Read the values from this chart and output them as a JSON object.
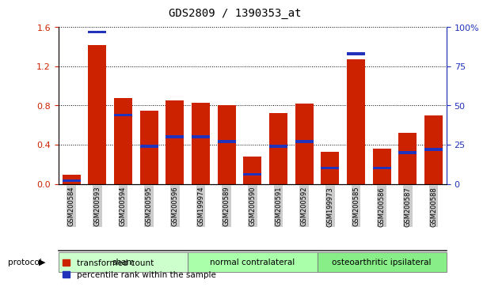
{
  "title": "GDS2809 / 1390353_at",
  "categories": [
    "GSM200584",
    "GSM200593",
    "GSM200594",
    "GSM200595",
    "GSM200596",
    "GSM199974",
    "GSM200589",
    "GSM200590",
    "GSM200591",
    "GSM200592",
    "GSM199973",
    "GSM200585",
    "GSM200586",
    "GSM200587",
    "GSM200588"
  ],
  "red_values": [
    0.09,
    1.42,
    0.88,
    0.75,
    0.85,
    0.83,
    0.8,
    0.28,
    0.72,
    0.82,
    0.33,
    1.27,
    0.36,
    0.52,
    0.7
  ],
  "blue_pct": [
    2,
    97,
    44,
    24,
    30,
    30,
    27,
    6,
    24,
    27,
    10,
    83,
    10,
    20,
    22
  ],
  "ylim_left": [
    0,
    1.6
  ],
  "ylim_right": [
    0,
    100
  ],
  "yticks_left": [
    0.0,
    0.4,
    0.8,
    1.2,
    1.6
  ],
  "yticks_right": [
    0,
    25,
    50,
    75,
    100
  ],
  "ytick_labels_right": [
    "0",
    "25",
    "50",
    "75",
    "100%"
  ],
  "red_color": "#CC2200",
  "blue_color": "#2233BB",
  "bar_width": 0.7,
  "groups": [
    {
      "label": "sham",
      "start": 0,
      "end": 5,
      "color": "#ccffcc"
    },
    {
      "label": "normal contralateral",
      "start": 5,
      "end": 10,
      "color": "#aaffaa"
    },
    {
      "label": "osteoarthritic ipsilateral",
      "start": 10,
      "end": 15,
      "color": "#88ee88"
    }
  ],
  "legend_red": "transformed count",
  "legend_blue": "percentile rank within the sample",
  "protocol_label": "protocol",
  "bg_color": "#ffffff",
  "tick_label_bg": "#cccccc",
  "title_fontsize": 10,
  "axis_label_fontsize": 8,
  "tick_fontsize": 8
}
